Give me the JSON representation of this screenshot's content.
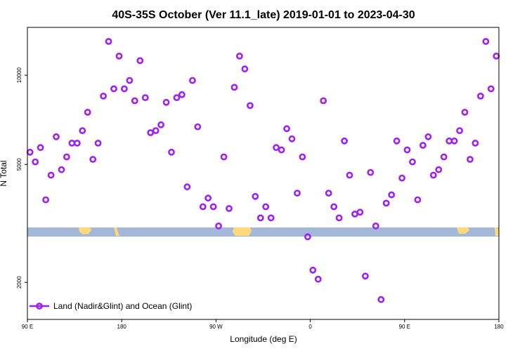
{
  "chart_data": {
    "type": "scatter",
    "title": "40S-35S October (Ver 11.1_late)   2019-01-01 to 2023-04-30",
    "xlabel": "Longitude (deg E)",
    "ylabel": "N Total",
    "x_tick_labels": [
      "90 E",
      "180",
      "90 W",
      "0",
      "90 E",
      "180"
    ],
    "x_ticks": [
      90,
      180,
      270,
      360,
      450,
      540
    ],
    "xlim": [
      90,
      540
    ],
    "y_scale": "log",
    "y_ticks": [
      2000,
      5000,
      10000
    ],
    "y_tick_labels": [
      "2000",
      "5000",
      "10000"
    ],
    "ylim": [
      1500,
      14500
    ],
    "grid": false,
    "legend": {
      "position": "bottom-left",
      "entries": [
        "Land (Nadir&Glint) and Ocean (Glint)"
      ]
    },
    "colors": {
      "series": "#a020f0",
      "ocean_band": "#a3b8d9",
      "land_band": "#ffd97a"
    },
    "series": [
      {
        "x": [
          92.5,
          97.5,
          102.5,
          107.5,
          112.5,
          117.5,
          122.5,
          127.5,
          132.5,
          137.5,
          142.5,
          147.5,
          152.5,
          157.5,
          162.5,
          167.5,
          172.5,
          177.5,
          182.5,
          187.5,
          192.5,
          197.5,
          202.5,
          207.5,
          212.5,
          217.5,
          222.5,
          227.5,
          232.5,
          237.5,
          242.5,
          247.5,
          252.5,
          257.5,
          262.5,
          267.5,
          272.5,
          277.5,
          282.5,
          287.5,
          292.5,
          297.5,
          302.5,
          307.5,
          312.5,
          317.5,
          322.5,
          327.5,
          332.5,
          337.5,
          342.5,
          347.5,
          352.5,
          357.5,
          362.5,
          367.5,
          372.5,
          377.5,
          382.5,
          387.5,
          392.5,
          397.5,
          402.5,
          407.5,
          412.5,
          417.5,
          422.5,
          427.5,
          432.5,
          437.5,
          442.5,
          447.5,
          452.5,
          457.5,
          462.5,
          467.5,
          472.5,
          477.5,
          482.5,
          487.5,
          492.5,
          497.5,
          502.5,
          507.5,
          512.5,
          517.5,
          522.5,
          527.5,
          532.5,
          537.5
        ],
        "y": [
          5500,
          5100,
          5700,
          3800,
          4600,
          6200,
          4800,
          5300,
          5900,
          5900,
          6500,
          7500,
          5200,
          5900,
          8500,
          13000,
          9000,
          11600,
          9000,
          9600,
          8200,
          11200,
          8400,
          6400,
          6500,
          6800,
          8100,
          5500,
          8400,
          8600,
          4200,
          9600,
          6700,
          3600,
          3850,
          3600,
          3100,
          5300,
          3550,
          9100,
          11600,
          10500,
          7900,
          3900,
          3300,
          3600,
          3300,
          5700,
          5600,
          6600,
          6100,
          4000,
          5300,
          2850,
          2200,
          2050,
          8200,
          4000,
          3600,
          3300,
          6000,
          4600,
          3400,
          3450,
          2100,
          4700,
          3100,
          1750,
          3700,
          3950,
          6000,
          4500,
          5600,
          5100,
          3800,
          5800,
          6200,
          4600,
          4800,
          5300,
          6000,
          6000,
          6500,
          7500,
          5200,
          5900,
          8500,
          13000,
          9000,
          11600
        ]
      }
    ]
  }
}
